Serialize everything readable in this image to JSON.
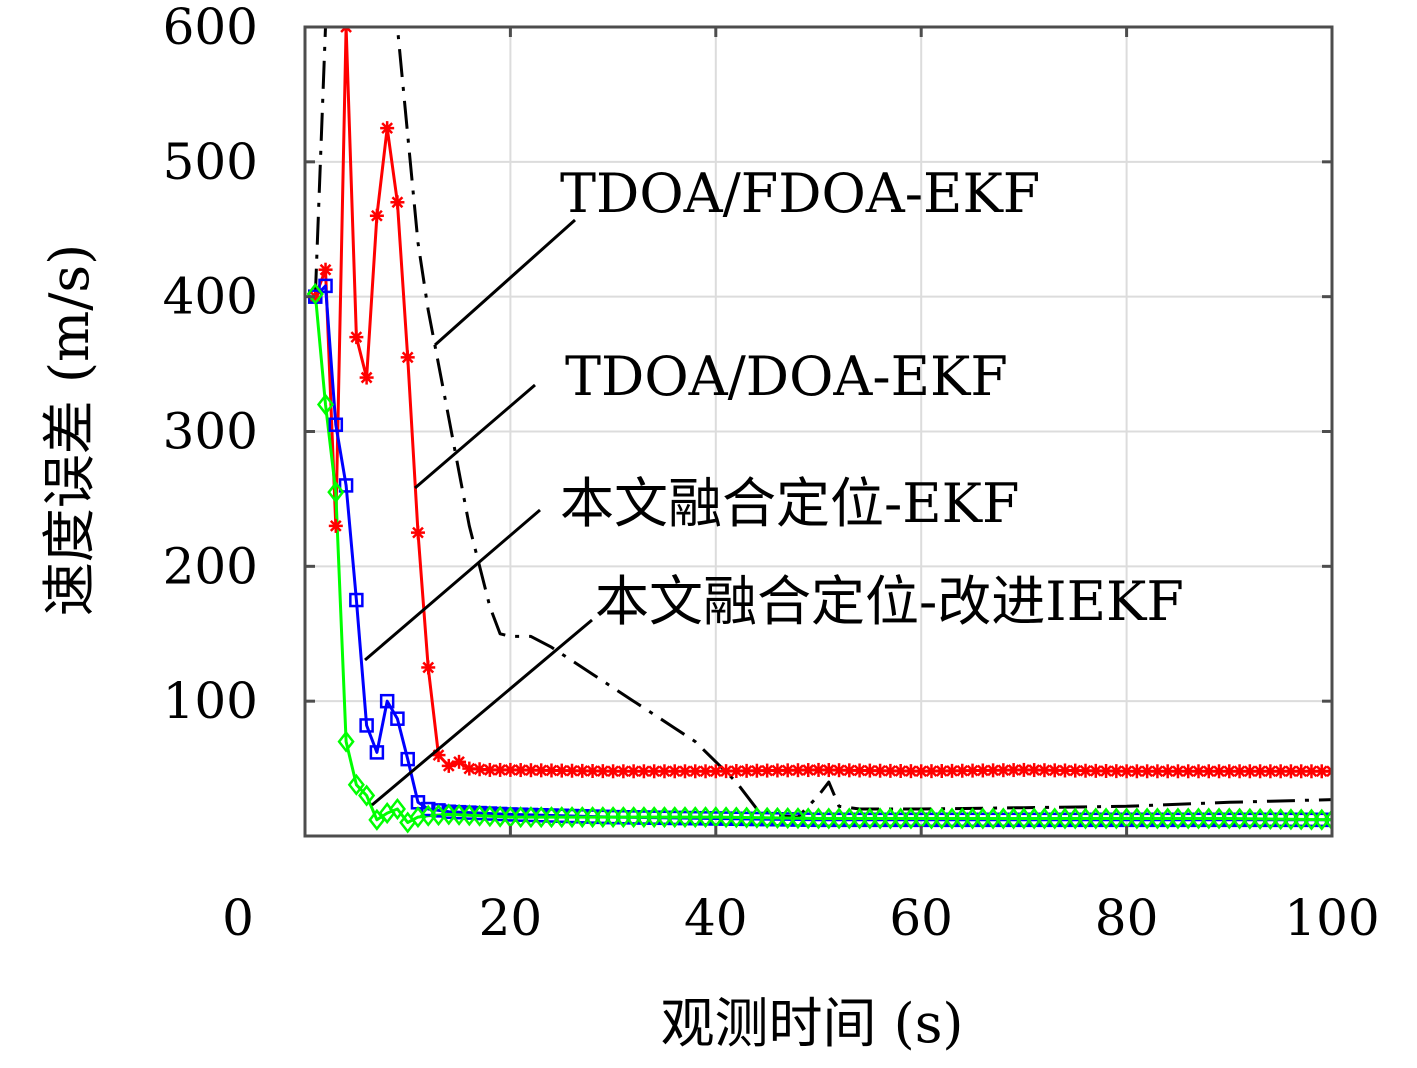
{
  "chart_data": {
    "type": "line",
    "xlabel": "观测时间 (s)",
    "ylabel": "速度误差 (m/s)",
    "xlim": [
      0,
      100
    ],
    "ylim": [
      0,
      600
    ],
    "x_ticks": [
      "0",
      "20",
      "40",
      "60",
      "80",
      "100"
    ],
    "y_ticks": [
      "100",
      "200",
      "300",
      "400",
      "500",
      "600"
    ],
    "grid": true,
    "annotations": [
      "TDOA/FDOA-EKF",
      "TDOA/DOA-EKF",
      "本文融合定位-EKF",
      "本文融合定位-改进IEKF"
    ],
    "series": [
      {
        "name": "TDOA/FDOA-EKF",
        "color": "#000000",
        "style": "dashdot",
        "marker": "none",
        "points": [
          [
            1,
            400
          ],
          [
            2,
            600
          ],
          [
            3,
            600
          ],
          [
            4,
            600
          ],
          [
            5,
            600
          ],
          [
            6,
            600
          ],
          [
            7,
            600
          ],
          [
            8,
            600
          ],
          [
            9,
            600
          ],
          [
            10,
            520
          ],
          [
            11,
            440
          ],
          [
            12,
            390
          ],
          [
            13,
            350
          ],
          [
            14,
            310
          ],
          [
            15,
            270
          ],
          [
            16,
            230
          ],
          [
            17,
            200
          ],
          [
            18,
            170
          ],
          [
            19,
            150
          ],
          [
            20,
            148
          ],
          [
            22,
            148
          ],
          [
            24,
            140
          ],
          [
            26,
            130
          ],
          [
            28,
            120
          ],
          [
            30,
            110
          ],
          [
            32,
            100
          ],
          [
            34,
            90
          ],
          [
            36,
            80
          ],
          [
            38,
            70
          ],
          [
            40,
            55
          ],
          [
            42,
            40
          ],
          [
            44,
            20
          ],
          [
            46,
            15
          ],
          [
            48,
            14
          ],
          [
            50,
            30
          ],
          [
            51,
            40
          ],
          [
            52,
            22
          ],
          [
            54,
            20
          ],
          [
            60,
            20
          ],
          [
            70,
            21
          ],
          [
            80,
            22
          ],
          [
            90,
            25
          ],
          [
            100,
            27
          ]
        ]
      },
      {
        "name": "TDOA/DOA-EKF",
        "color": "#ff0000",
        "style": "solid",
        "marker": "asterisk",
        "points": [
          [
            1,
            400
          ],
          [
            2,
            420
          ],
          [
            3,
            230
          ],
          [
            4,
            600
          ],
          [
            5,
            370
          ],
          [
            6,
            340
          ],
          [
            7,
            460
          ],
          [
            8,
            525
          ],
          [
            9,
            470
          ],
          [
            10,
            355
          ],
          [
            11,
            225
          ],
          [
            12,
            125
          ],
          [
            13,
            60
          ],
          [
            14,
            52
          ],
          [
            15,
            55
          ],
          [
            16,
            50
          ],
          [
            18,
            49
          ],
          [
            20,
            49
          ],
          [
            30,
            48
          ],
          [
            40,
            48
          ],
          [
            50,
            49
          ],
          [
            60,
            48
          ],
          [
            70,
            49
          ],
          [
            80,
            48
          ],
          [
            90,
            48
          ],
          [
            100,
            48
          ]
        ]
      },
      {
        "name": "本文融合定位-EKF",
        "color": "#0000ff",
        "style": "solid",
        "marker": "square",
        "points": [
          [
            1,
            400
          ],
          [
            2,
            408
          ],
          [
            3,
            305
          ],
          [
            4,
            260
          ],
          [
            5,
            175
          ],
          [
            6,
            82
          ],
          [
            7,
            62
          ],
          [
            8,
            100
          ],
          [
            9,
            87
          ],
          [
            10,
            57
          ],
          [
            11,
            25
          ],
          [
            12,
            20
          ],
          [
            14,
            18
          ],
          [
            20,
            16
          ],
          [
            30,
            14
          ],
          [
            40,
            13
          ],
          [
            50,
            12
          ],
          [
            60,
            12
          ],
          [
            70,
            12
          ],
          [
            80,
            12
          ],
          [
            90,
            12
          ],
          [
            100,
            12
          ]
        ]
      },
      {
        "name": "本文融合定位-改进IEKF",
        "color": "#00ff00",
        "style": "solid",
        "marker": "diamond",
        "points": [
          [
            1,
            402
          ],
          [
            2,
            320
          ],
          [
            3,
            255
          ],
          [
            4,
            70
          ],
          [
            5,
            38
          ],
          [
            6,
            30
          ],
          [
            7,
            12
          ],
          [
            8,
            17
          ],
          [
            9,
            20
          ],
          [
            10,
            10
          ],
          [
            11,
            14
          ],
          [
            12,
            15
          ],
          [
            14,
            16
          ],
          [
            20,
            14
          ],
          [
            30,
            14
          ],
          [
            40,
            14
          ],
          [
            50,
            13
          ],
          [
            60,
            13
          ],
          [
            70,
            13
          ],
          [
            80,
            13
          ],
          [
            90,
            13
          ],
          [
            100,
            12
          ]
        ]
      }
    ]
  }
}
